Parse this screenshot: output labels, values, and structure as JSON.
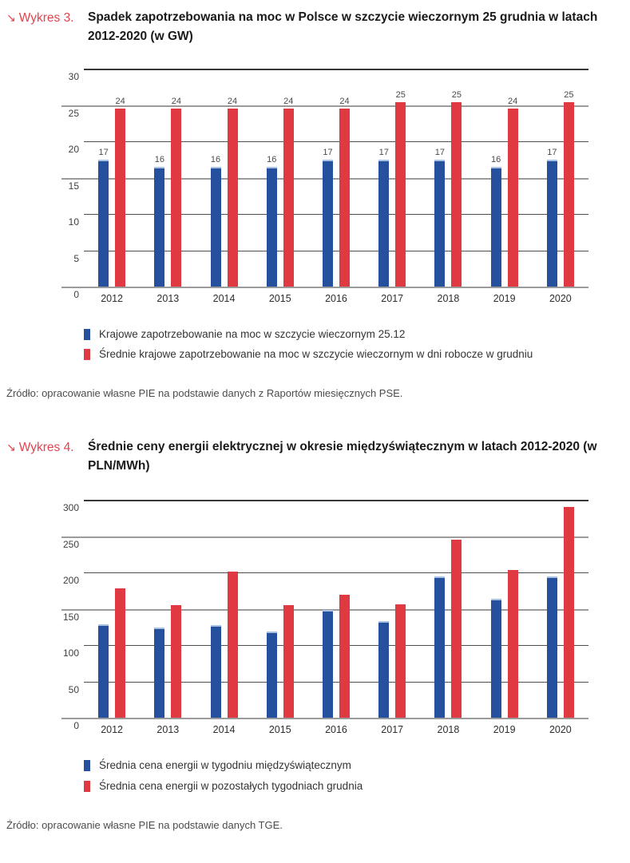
{
  "page": {
    "figures": [
      {
        "kicker": "↘",
        "label": "Wykres 3.",
        "title": "Spadek zapotrzebowania na moc w Polsce w szczycie wieczornym 25 grudnia w latach 2012-2020 (w GW)",
        "source": "Źródło: opracowanie własne PIE na podstawie danych z Raportów miesięcznych PSE."
      },
      {
        "kicker": "↘",
        "label": "Wykres 4.",
        "title": "Średnie ceny energii elektrycznej w okresie międzyświątecznym w latach 2012-2020 (w PLN/MWh)",
        "source": "Źródło: opracowanie własne PIE na podstawie danych TGE."
      }
    ]
  },
  "colors": {
    "accent_red": "#E8414D",
    "bar_blue": "#24509D",
    "bar_blue_cap": "#A9C2E3",
    "bar_red": "#DF3A41"
  },
  "chart_data": [
    {
      "type": "bar",
      "title": "Spadek zapotrzebowania na moc w Polsce w szczycie wieczornym 25 grudnia w latach 2012-2020 (w GW)",
      "categories": [
        "2012",
        "2013",
        "2014",
        "2015",
        "2016",
        "2017",
        "2018",
        "2019",
        "2020"
      ],
      "series": [
        {
          "name": "Krajowe zapotrzebowanie na moc w szczycie wieczornym 25.12",
          "color": "#24509D",
          "cap_color": "#A9C2E3",
          "values": [
            17,
            16,
            16,
            16,
            17,
            17,
            17,
            16,
            17
          ],
          "render_values": [
            17.3,
            16.3,
            16.3,
            16.3,
            17.3,
            17.3,
            17.3,
            16.3,
            17.3
          ]
        },
        {
          "name": "Średnie krajowe zapotrzebowanie na moc w szczycie wieczornym w dni robocze w grudniu",
          "color": "#DF3A41",
          "values": [
            24,
            24,
            24,
            24,
            24,
            25,
            25,
            24,
            25
          ],
          "render_values": [
            24.5,
            24.5,
            24.5,
            24.5,
            24.5,
            25.4,
            25.4,
            24.5,
            25.4
          ]
        }
      ],
      "xlabel": "",
      "ylabel": "",
      "ylim": [
        0,
        30
      ],
      "yticks": [
        30,
        25,
        20,
        15,
        10,
        5,
        0
      ],
      "grid_gray_ticks": [
        25,
        15,
        0
      ],
      "grid": true,
      "show_value_labels": true,
      "legend_position": "bottom"
    },
    {
      "type": "bar",
      "title": "Średnie ceny energii elektrycznej w okresie międzyświątecznym w latach 2012-2020 (w PLN/MWh)",
      "categories": [
        "2012",
        "2013",
        "2014",
        "2015",
        "2016",
        "2017",
        "2018",
        "2019",
        "2020"
      ],
      "series": [
        {
          "name": "Średnia cena energii w tygodniu międzyświątecznym",
          "color": "#24509D",
          "cap_color": "#A9C2E3",
          "values": [
            127,
            122,
            126,
            117,
            147,
            131,
            193,
            162,
            193
          ]
        },
        {
          "name": "Średnia cena energii w pozostałych tygodniach grudnia",
          "color": "#DF3A41",
          "values": [
            178,
            155,
            202,
            155,
            170,
            156,
            245,
            204,
            291
          ]
        }
      ],
      "xlabel": "",
      "ylabel": "",
      "ylim": [
        0,
        300
      ],
      "yticks": [
        300,
        250,
        200,
        150,
        100,
        50,
        0
      ],
      "grid_gray_ticks": [
        250,
        150,
        0
      ],
      "grid": true,
      "show_value_labels": false,
      "legend_position": "bottom"
    }
  ]
}
